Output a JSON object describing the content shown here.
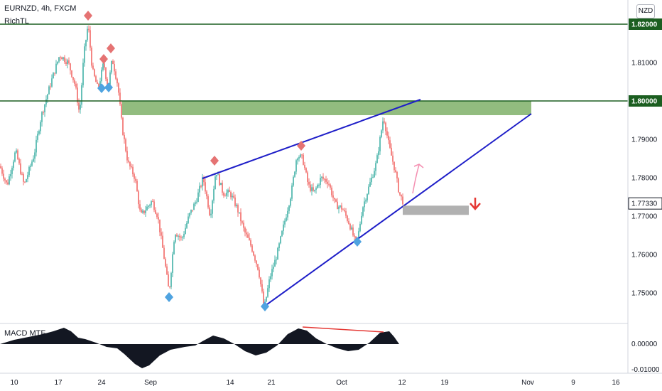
{
  "header": {
    "symbol": "EURNZD, 4h, FXCM",
    "indicator": "RichTL",
    "currency": "NZD"
  },
  "macd": {
    "label": "MACD MTF"
  },
  "chart_data": {
    "type": "candlestick",
    "symbol": "EURNZD",
    "timeframe": "4h",
    "broker": "FXCM",
    "price_axis": {
      "ticks": [
        1.82,
        1.81,
        1.8,
        1.79,
        1.78,
        1.77,
        1.76,
        1.75
      ],
      "tick_labels": [
        "1.82000",
        "1.81000",
        "1.80000",
        "1.79000",
        "1.78000",
        "1.77000",
        "1.76000",
        "1.75000"
      ],
      "range": [
        1.7395,
        1.835
      ],
      "highlighted": [
        "1.82000",
        "1.80000"
      ],
      "current_price": "1.77330"
    },
    "time_axis": {
      "labels": [
        "10",
        "17",
        "24",
        "Sep",
        "14",
        "21",
        "Oct",
        "12",
        "19",
        "Nov",
        "9",
        "16"
      ]
    },
    "macd_axis": {
      "tick_labels": [
        "0.00000",
        "-0.01000"
      ]
    },
    "horizontal_levels": [
      1.82,
      1.8
    ],
    "resistance_zone": [
      1.7963,
      1.8
    ],
    "target_zone_price": 1.7718,
    "colors": {
      "up": "#26a69a",
      "down": "#ef5350",
      "trendline": "#1e1ec8",
      "level": "#1b5e20",
      "zone": "#7fb069",
      "pivot_high": "#e57373",
      "pivot_low": "#4fa3e0",
      "macd": "#131722",
      "divergence": "#e53935",
      "target": "#9e9e9e",
      "arrow_down": "#e53935"
    }
  }
}
